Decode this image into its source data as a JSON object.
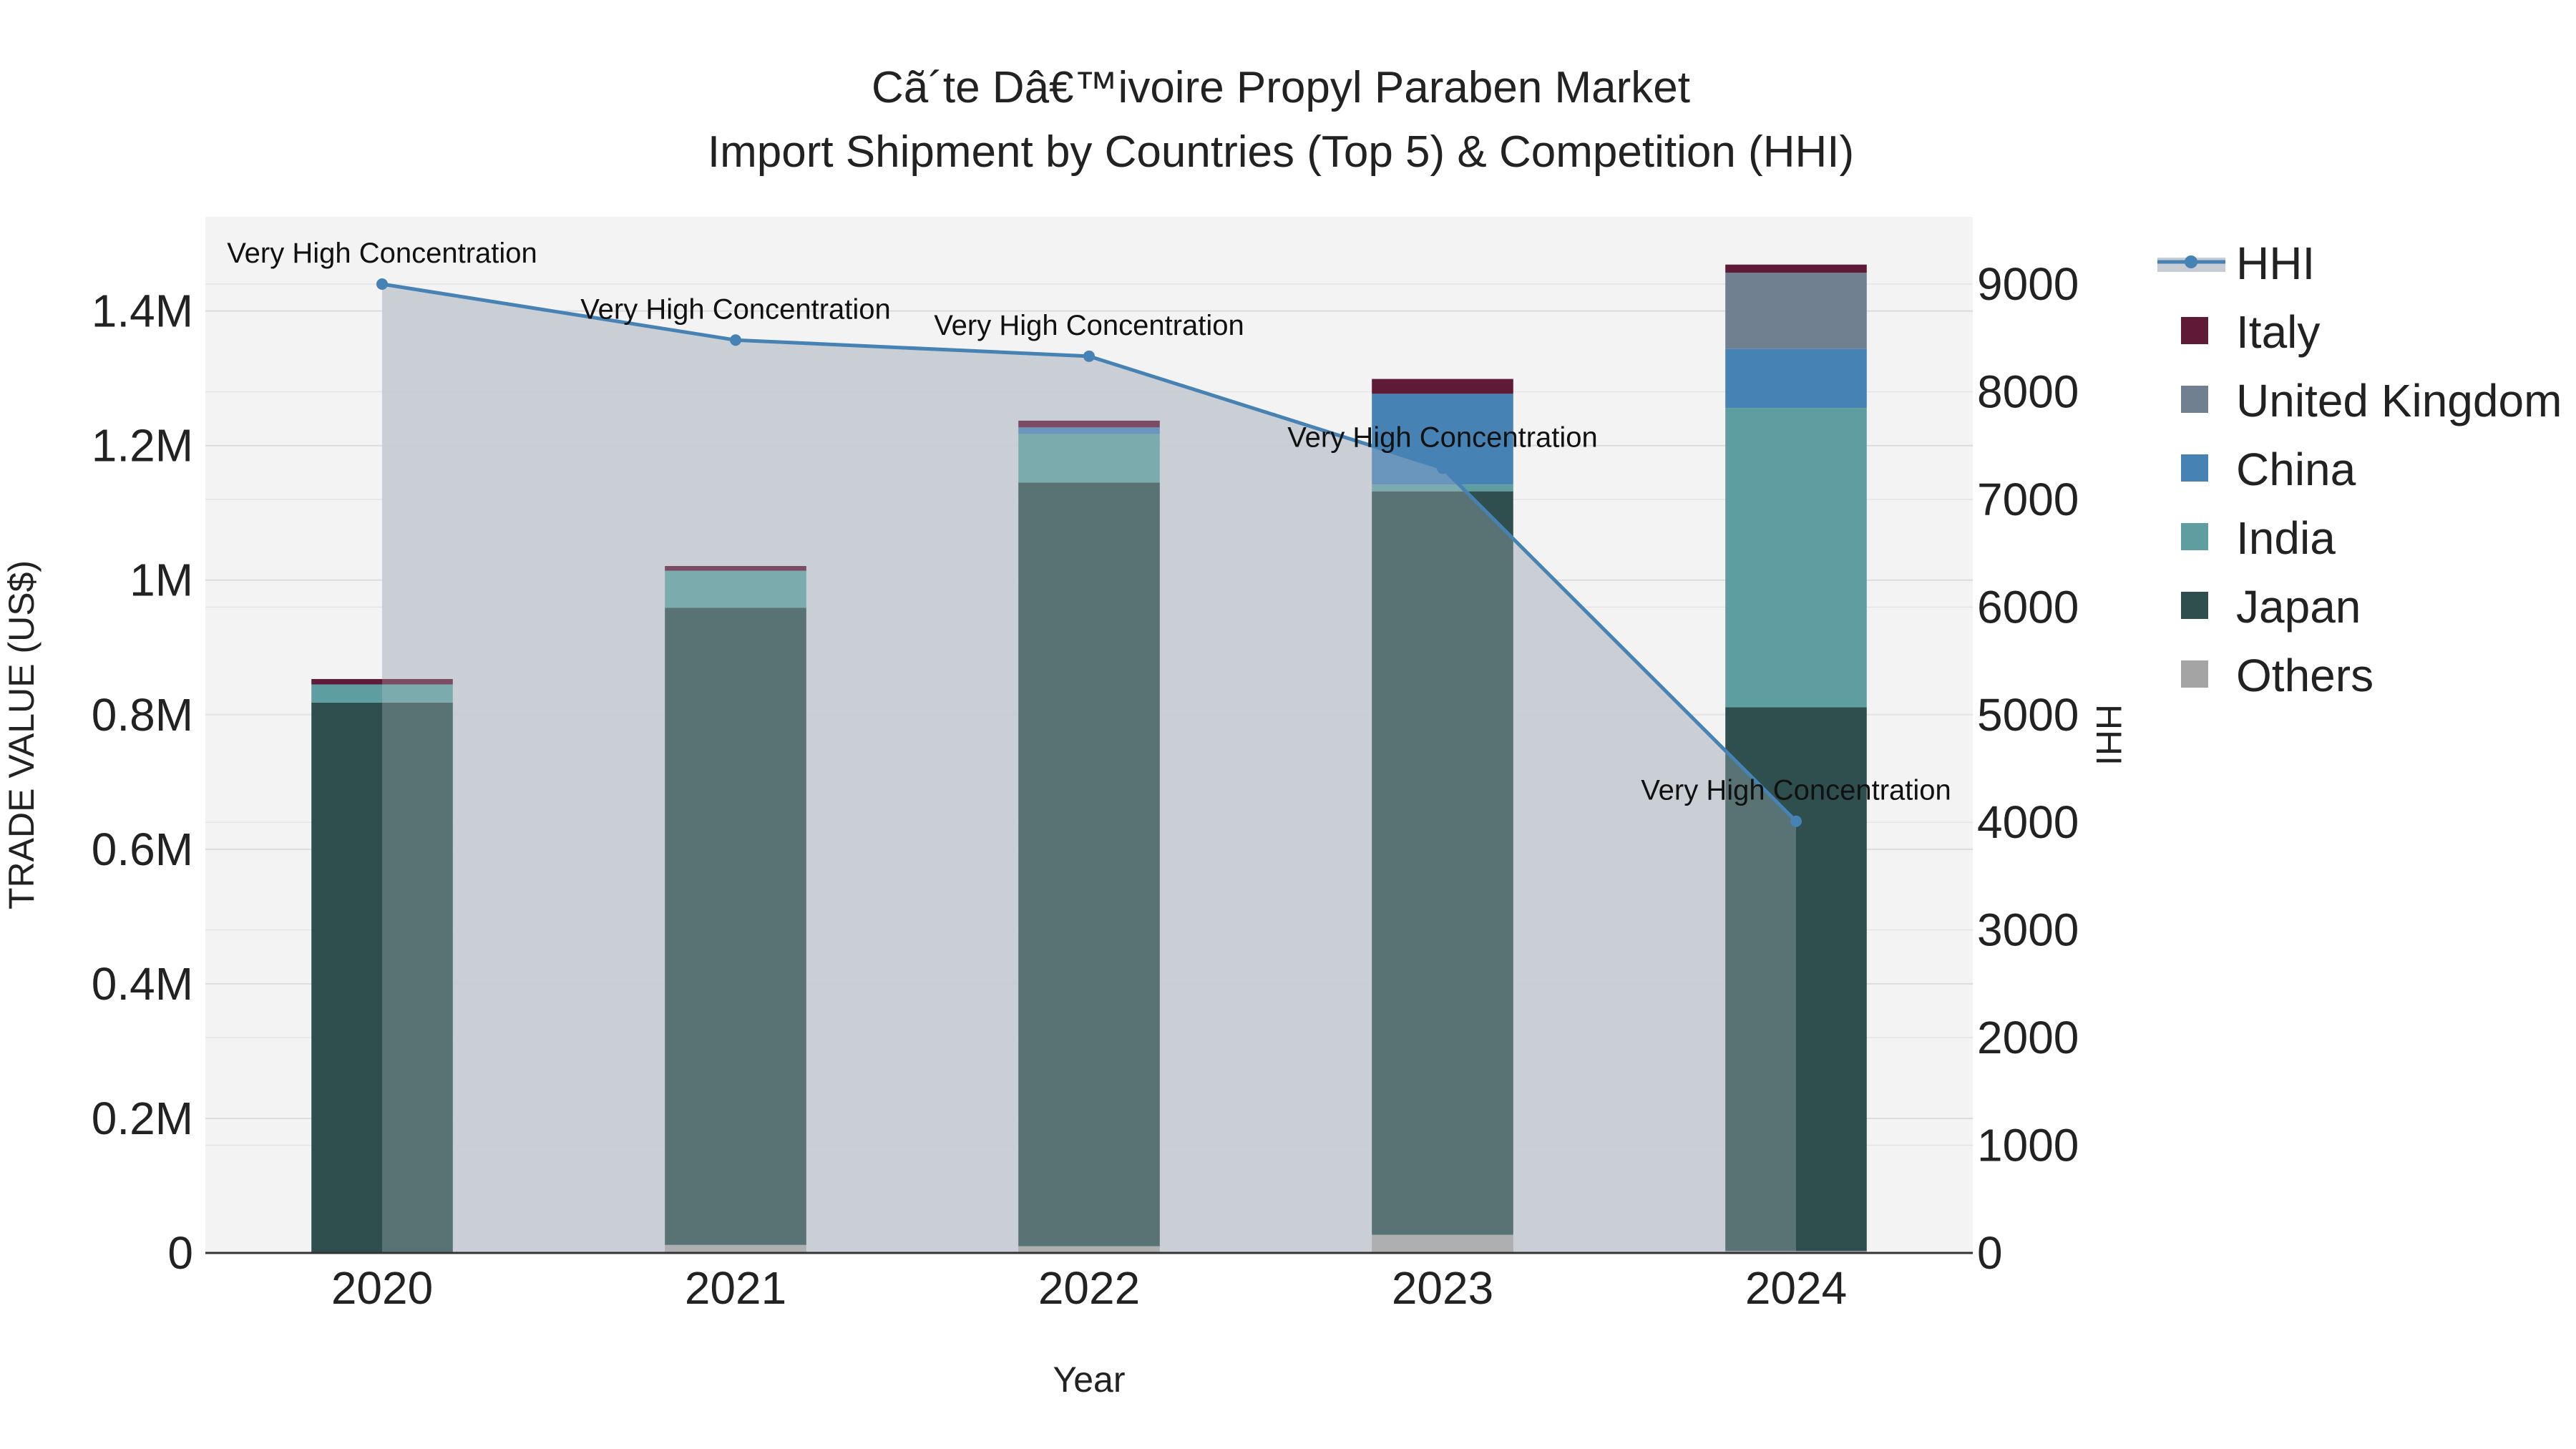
{
  "chart_data": {
    "type": "bar",
    "title_line1": "Cã´te Dâ€™ivoire Propyl Paraben Market",
    "title_line2": "Import Shipment by Countries (Top 5) & Competition (HHI)",
    "xlabel": "Year",
    "ylabel_left": "TRADE VALUE (US$)",
    "ylabel_right": "HHI",
    "categories": [
      "2020",
      "2021",
      "2022",
      "2023",
      "2024"
    ],
    "ylim_left": [
      0,
      1540000
    ],
    "ylim_right": [
      0,
      9625
    ],
    "left_ticks": [
      {
        "value": 0,
        "label": "0"
      },
      {
        "value": 200000,
        "label": "0.2M"
      },
      {
        "value": 400000,
        "label": "0.4M"
      },
      {
        "value": 600000,
        "label": "0.6M"
      },
      {
        "value": 800000,
        "label": "0.8M"
      },
      {
        "value": 1000000,
        "label": "1M"
      },
      {
        "value": 1200000,
        "label": "1.2M"
      },
      {
        "value": 1400000,
        "label": "1.4M"
      }
    ],
    "right_ticks": [
      {
        "value": 0,
        "label": "0"
      },
      {
        "value": 1000,
        "label": "1000"
      },
      {
        "value": 2000,
        "label": "2000"
      },
      {
        "value": 3000,
        "label": "3000"
      },
      {
        "value": 4000,
        "label": "4000"
      },
      {
        "value": 5000,
        "label": "5000"
      },
      {
        "value": 6000,
        "label": "6000"
      },
      {
        "value": 7000,
        "label": "7000"
      },
      {
        "value": 8000,
        "label": "8000"
      },
      {
        "value": 9000,
        "label": "9000"
      }
    ],
    "series": [
      {
        "name": "Others",
        "color": "#a4a4a4",
        "values": [
          0,
          12000,
          10000,
          27000,
          3000
        ]
      },
      {
        "name": "Japan",
        "color": "#2f4f4f",
        "values": [
          818000,
          947000,
          1135000,
          1105000,
          808000
        ]
      },
      {
        "name": "India",
        "color": "#5f9ea0",
        "values": [
          27000,
          55000,
          72000,
          10000,
          445000
        ]
      },
      {
        "name": "China",
        "color": "#4682b4",
        "values": [
          0,
          0,
          10000,
          135000,
          88000
        ]
      },
      {
        "name": "United Kingdom",
        "color": "#708090",
        "values": [
          0,
          0,
          0,
          0,
          113000
        ]
      },
      {
        "name": "Italy",
        "color": "#5e1a36",
        "values": [
          8000,
          7000,
          10000,
          22000,
          12000
        ]
      }
    ],
    "hhi": {
      "name": "HHI",
      "color": "#4682b4",
      "values": [
        9000,
        8480,
        8330,
        7290,
        4010
      ],
      "labels": [
        "Very High Concentration",
        "Very High Concentration",
        "Very High Concentration",
        "Very High Concentration",
        "Very High Concentration"
      ]
    },
    "legend_order": [
      "HHI",
      "Italy",
      "United Kingdom",
      "China",
      "India",
      "Japan",
      "Others"
    ],
    "plot_bg": "#f3f3f3",
    "hhi_fill": "#c8ccd4",
    "grid": true,
    "legend_position": "right"
  }
}
